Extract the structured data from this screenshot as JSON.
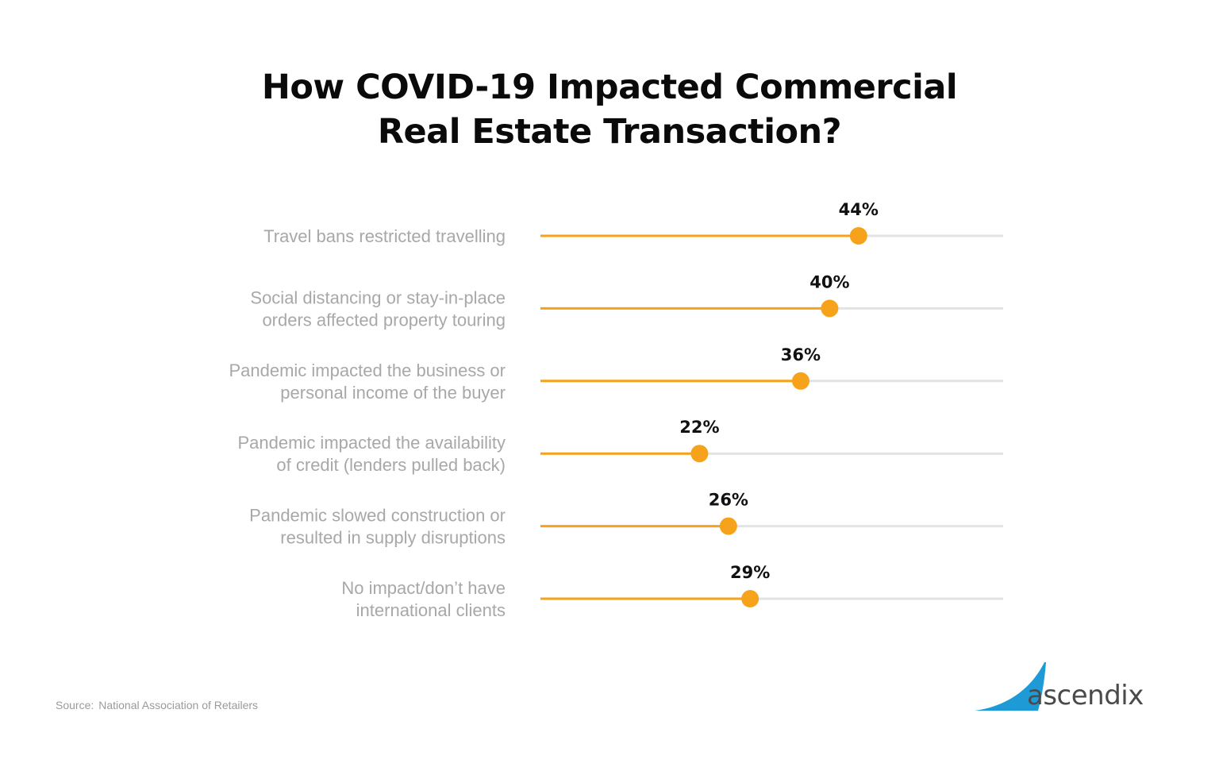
{
  "title": {
    "line1": "How COVID-19 Impacted Commercial",
    "line2": "Real Estate Transaction?"
  },
  "source": {
    "label": "Source:",
    "text": "National Association of Retailers"
  },
  "logo": {
    "text": "ascendix"
  },
  "colors": {
    "accent": "#F7A21B",
    "track": "#E3E3E3",
    "label": "#A8A8A8",
    "value_label": "#111111",
    "logo_blue": "#1E9BD7"
  },
  "chart_data": {
    "type": "lollipop",
    "title": "How COVID-19 Impacted Commercial Real Estate Transaction?",
    "value_suffix": "%",
    "xlim": [
      0,
      64
    ],
    "grid": false,
    "categories": [
      [
        "Travel bans restricted travelling"
      ],
      [
        "Social distancing or stay-in-place",
        "orders affected property touring"
      ],
      [
        "Pandemic impacted the business or",
        "personal income of the buyer"
      ],
      [
        "Pandemic impacted the availability",
        "of credit (lenders pulled back)"
      ],
      [
        "Pandemic slowed construction or",
        "resulted in supply disruptions"
      ],
      [
        "No impact/don’t have",
        "international clients"
      ]
    ],
    "values": [
      44,
      40,
      36,
      22,
      26,
      29
    ],
    "value_labels": [
      "44%",
      "40%",
      "36%",
      "22%",
      "26%",
      "29%"
    ]
  }
}
